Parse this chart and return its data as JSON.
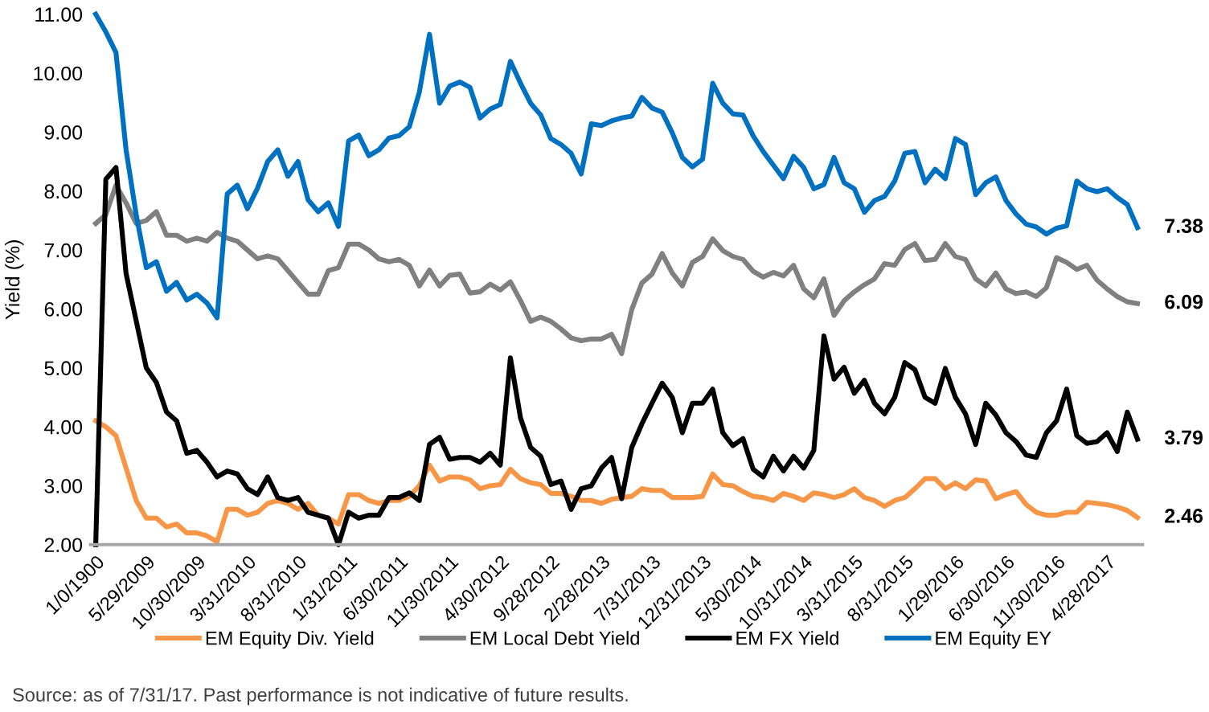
{
  "chart_data": {
    "type": "line",
    "ylabel": "Yield (%)",
    "categories": [
      "1/0/1900",
      null,
      null,
      null,
      null,
      "5/29/2009",
      null,
      null,
      null,
      null,
      "10/30/2009",
      null,
      null,
      null,
      null,
      "3/31/2010",
      null,
      null,
      null,
      null,
      "8/31/2010",
      null,
      null,
      null,
      null,
      "1/31/2011",
      null,
      null,
      null,
      null,
      "6/30/2011",
      null,
      null,
      null,
      null,
      "11/30/2011",
      null,
      null,
      null,
      null,
      "4/30/2012",
      null,
      null,
      null,
      null,
      "9/28/2012",
      null,
      null,
      null,
      null,
      "2/28/2013",
      null,
      null,
      null,
      null,
      "7/31/2013",
      null,
      null,
      null,
      null,
      "12/31/2013",
      null,
      null,
      null,
      null,
      "5/30/2014",
      null,
      null,
      null,
      null,
      "10/31/2014",
      null,
      null,
      null,
      null,
      "3/31/2015",
      null,
      null,
      null,
      null,
      "8/31/2015",
      null,
      null,
      null,
      null,
      "1/29/2016",
      null,
      null,
      null,
      null,
      "6/30/2016",
      null,
      null,
      null,
      null,
      "11/30/2016",
      null,
      null,
      null,
      null,
      "4/28/2017",
      null,
      null,
      null
    ],
    "series": [
      {
        "name": "EM Equity Div. Yield",
        "color": "#f79646",
        "values": [
          4.1,
          4.0,
          3.85,
          3.3,
          2.75,
          2.45,
          2.45,
          2.3,
          2.35,
          2.2,
          2.2,
          2.15,
          2.05,
          2.6,
          2.6,
          2.5,
          2.55,
          2.7,
          2.75,
          2.7,
          2.6,
          2.7,
          2.5,
          2.45,
          2.35,
          2.85,
          2.85,
          2.75,
          2.7,
          2.75,
          2.75,
          2.82,
          3.0,
          3.35,
          3.08,
          3.15,
          3.15,
          3.1,
          2.95,
          3.0,
          3.02,
          3.28,
          3.12,
          3.05,
          3.02,
          2.87,
          2.87,
          2.82,
          2.75,
          2.75,
          2.7,
          2.77,
          2.8,
          2.82,
          2.95,
          2.92,
          2.92,
          2.8,
          2.8,
          2.8,
          2.82,
          3.2,
          3.02,
          3.0,
          2.9,
          2.82,
          2.8,
          2.75,
          2.87,
          2.82,
          2.75,
          2.88,
          2.85,
          2.8,
          2.85,
          2.95,
          2.8,
          2.75,
          2.65,
          2.75,
          2.8,
          2.95,
          3.12,
          3.12,
          2.95,
          3.05,
          2.95,
          3.1,
          3.08,
          2.78,
          2.85,
          2.9,
          2.68,
          2.55,
          2.5,
          2.5,
          2.55,
          2.55,
          2.72,
          2.7,
          2.68,
          2.64,
          2.58,
          2.46
        ],
        "value_labels": [
          null,
          null,
          null,
          null,
          null,
          null,
          null,
          null,
          null,
          null,
          null,
          null,
          null,
          null,
          null,
          null,
          null,
          null,
          null,
          null,
          null,
          null,
          null,
          null,
          null,
          null,
          null,
          null,
          null,
          null,
          null,
          null,
          null,
          null,
          null,
          null,
          null,
          null,
          null,
          null,
          null,
          null,
          null,
          null,
          null,
          null,
          null,
          null,
          null,
          null,
          null,
          null,
          null,
          null,
          null,
          null,
          null,
          null,
          null,
          null,
          null,
          null,
          null,
          null,
          null,
          null,
          null,
          null,
          null,
          null,
          null,
          null,
          null,
          null,
          null,
          null,
          null,
          null,
          null,
          null,
          null,
          null,
          null,
          null,
          null,
          null,
          null,
          null,
          null,
          null,
          null,
          null,
          null,
          null,
          null,
          null,
          null,
          null,
          null,
          null,
          null,
          null,
          null,
          "2.46"
        ]
      },
      {
        "name": "EM Local Debt Yield",
        "color": "#808080",
        "values": [
          7.45,
          7.6,
          8.1,
          7.8,
          7.45,
          7.5,
          7.65,
          7.25,
          7.25,
          7.15,
          7.2,
          7.15,
          7.3,
          7.2,
          7.15,
          7.0,
          6.85,
          6.9,
          6.85,
          6.65,
          6.45,
          6.25,
          6.25,
          6.65,
          6.7,
          7.1,
          7.1,
          7.0,
          6.85,
          6.8,
          6.84,
          6.74,
          6.39,
          6.66,
          6.39,
          6.57,
          6.59,
          6.27,
          6.29,
          6.42,
          6.32,
          6.46,
          6.14,
          5.79,
          5.86,
          5.79,
          5.66,
          5.51,
          5.46,
          5.49,
          5.49,
          5.57,
          5.24,
          5.99,
          6.44,
          6.59,
          6.94,
          6.61,
          6.39,
          6.79,
          6.89,
          7.19,
          6.99,
          6.89,
          6.84,
          6.64,
          6.54,
          6.62,
          6.56,
          6.74,
          6.34,
          6.19,
          6.51,
          5.89,
          6.14,
          6.29,
          6.41,
          6.51,
          6.77,
          6.74,
          7.01,
          7.11,
          6.82,
          6.84,
          7.11,
          6.89,
          6.84,
          6.51,
          6.39,
          6.61,
          6.34,
          6.26,
          6.29,
          6.21,
          6.36,
          6.87,
          6.79,
          6.67,
          6.74,
          6.49,
          6.34,
          6.21,
          6.12,
          6.09
        ],
        "value_labels": [
          null,
          null,
          null,
          null,
          null,
          null,
          null,
          null,
          null,
          null,
          null,
          null,
          null,
          null,
          null,
          null,
          null,
          null,
          null,
          null,
          null,
          null,
          null,
          null,
          null,
          null,
          null,
          null,
          null,
          null,
          null,
          null,
          null,
          null,
          null,
          null,
          null,
          null,
          null,
          null,
          null,
          null,
          null,
          null,
          null,
          null,
          null,
          null,
          null,
          null,
          null,
          null,
          null,
          null,
          null,
          null,
          null,
          null,
          null,
          null,
          null,
          null,
          null,
          null,
          null,
          null,
          null,
          null,
          null,
          null,
          null,
          null,
          null,
          null,
          null,
          null,
          null,
          null,
          null,
          null,
          null,
          null,
          null,
          null,
          null,
          null,
          null,
          null,
          null,
          null,
          null,
          null,
          null,
          null,
          null,
          null,
          null,
          null,
          null,
          null,
          null,
          null,
          null,
          "6.09"
        ]
      },
      {
        "name": "EM FX Yield",
        "color": "#000000",
        "values": [
          2.0,
          8.2,
          8.4,
          6.6,
          5.8,
          5.0,
          4.75,
          4.25,
          4.1,
          3.55,
          3.6,
          3.4,
          3.15,
          3.25,
          3.2,
          2.95,
          2.85,
          3.15,
          2.8,
          2.75,
          2.8,
          2.55,
          2.5,
          2.45,
          2.0,
          2.55,
          2.45,
          2.5,
          2.5,
          2.8,
          2.8,
          2.88,
          2.75,
          3.7,
          3.82,
          3.45,
          3.48,
          3.48,
          3.4,
          3.55,
          3.35,
          5.17,
          4.15,
          3.65,
          3.5,
          3.02,
          3.08,
          2.6,
          2.95,
          3.0,
          3.3,
          3.48,
          2.78,
          3.65,
          4.05,
          4.4,
          4.74,
          4.5,
          3.9,
          4.4,
          4.4,
          4.64,
          3.9,
          3.68,
          3.8,
          3.28,
          3.15,
          3.5,
          3.25,
          3.5,
          3.3,
          3.6,
          5.54,
          4.81,
          5.01,
          4.57,
          4.79,
          4.4,
          4.22,
          4.5,
          5.09,
          4.97,
          4.5,
          4.4,
          4.99,
          4.5,
          4.22,
          3.7,
          4.4,
          4.2,
          3.9,
          3.75,
          3.52,
          3.48,
          3.9,
          4.1,
          4.64,
          3.85,
          3.72,
          3.75,
          3.9,
          3.58,
          4.25,
          3.79
        ],
        "value_labels": [
          null,
          null,
          null,
          null,
          null,
          null,
          null,
          null,
          null,
          null,
          null,
          null,
          null,
          null,
          null,
          null,
          null,
          null,
          null,
          null,
          null,
          null,
          null,
          null,
          null,
          null,
          null,
          null,
          null,
          null,
          null,
          null,
          null,
          null,
          null,
          null,
          null,
          null,
          null,
          null,
          null,
          null,
          null,
          null,
          null,
          null,
          null,
          null,
          null,
          null,
          null,
          null,
          null,
          null,
          null,
          null,
          null,
          null,
          null,
          null,
          null,
          null,
          null,
          null,
          null,
          null,
          null,
          null,
          null,
          null,
          null,
          null,
          null,
          null,
          null,
          null,
          null,
          null,
          null,
          null,
          null,
          null,
          null,
          null,
          null,
          null,
          null,
          null,
          null,
          null,
          null,
          null,
          null,
          null,
          null,
          null,
          null,
          null,
          null,
          null,
          null,
          null,
          null,
          "3.79"
        ]
      },
      {
        "name": "EM Equity EY",
        "color": "#0070c0",
        "values": [
          11.0,
          10.7,
          10.35,
          8.7,
          7.6,
          6.7,
          6.8,
          6.3,
          6.45,
          6.15,
          6.25,
          6.1,
          5.85,
          7.95,
          8.1,
          7.7,
          8.05,
          8.5,
          8.7,
          8.25,
          8.5,
          7.85,
          7.65,
          7.8,
          7.4,
          8.85,
          8.95,
          8.6,
          8.7,
          8.9,
          8.94,
          9.09,
          9.68,
          10.66,
          9.49,
          9.78,
          9.85,
          9.76,
          9.24,
          9.39,
          9.47,
          10.2,
          9.83,
          9.49,
          9.29,
          8.89,
          8.79,
          8.64,
          8.29,
          9.14,
          9.11,
          9.19,
          9.24,
          9.27,
          9.59,
          9.41,
          9.34,
          8.99,
          8.57,
          8.41,
          8.54,
          9.83,
          9.49,
          9.31,
          9.29,
          8.94,
          8.67,
          8.44,
          8.21,
          8.59,
          8.4,
          8.04,
          8.11,
          8.57,
          8.14,
          8.04,
          7.64,
          7.84,
          7.91,
          8.17,
          8.64,
          8.67,
          8.14,
          8.37,
          8.21,
          8.89,
          8.79,
          7.94,
          8.14,
          8.24,
          7.84,
          7.61,
          7.44,
          7.39,
          7.27,
          7.37,
          7.41,
          8.17,
          8.04,
          7.99,
          8.04,
          7.89,
          7.77,
          7.38
        ],
        "value_labels": [
          null,
          null,
          null,
          null,
          null,
          null,
          null,
          null,
          null,
          null,
          null,
          null,
          null,
          null,
          null,
          null,
          null,
          null,
          null,
          null,
          null,
          null,
          null,
          null,
          null,
          null,
          null,
          null,
          null,
          null,
          null,
          null,
          null,
          null,
          null,
          null,
          null,
          null,
          null,
          null,
          null,
          null,
          null,
          null,
          null,
          null,
          null,
          null,
          null,
          null,
          null,
          null,
          null,
          null,
          null,
          null,
          null,
          null,
          null,
          null,
          null,
          null,
          null,
          null,
          null,
          null,
          null,
          null,
          null,
          null,
          null,
          null,
          null,
          null,
          null,
          null,
          null,
          null,
          null,
          null,
          null,
          null,
          null,
          null,
          null,
          null,
          null,
          null,
          null,
          null,
          null,
          null,
          null,
          null,
          null,
          null,
          null,
          null,
          null,
          null,
          null,
          null,
          null,
          "7.38"
        ]
      }
    ],
    "ylim": [
      2,
      11
    ],
    "yticks": [
      {
        "value": 2,
        "label": "2.00"
      },
      {
        "value": 3,
        "label": "3.00"
      },
      {
        "value": 4,
        "label": "4.00"
      },
      {
        "value": 5,
        "label": "5.00"
      },
      {
        "value": 6,
        "label": "6.00"
      },
      {
        "value": 7,
        "label": "7.00"
      },
      {
        "value": 8,
        "label": "8.00"
      },
      {
        "value": 9,
        "label": "9.00"
      },
      {
        "value": 10,
        "label": "10.00"
      },
      {
        "value": 11,
        "label": "11.00"
      }
    ],
    "grid": false,
    "legend": "bottom",
    "marker": "none",
    "line_style": "solid",
    "annotations": [
      "Source: as of 7/31/17. Past performance is not indicative of future results."
    ]
  }
}
